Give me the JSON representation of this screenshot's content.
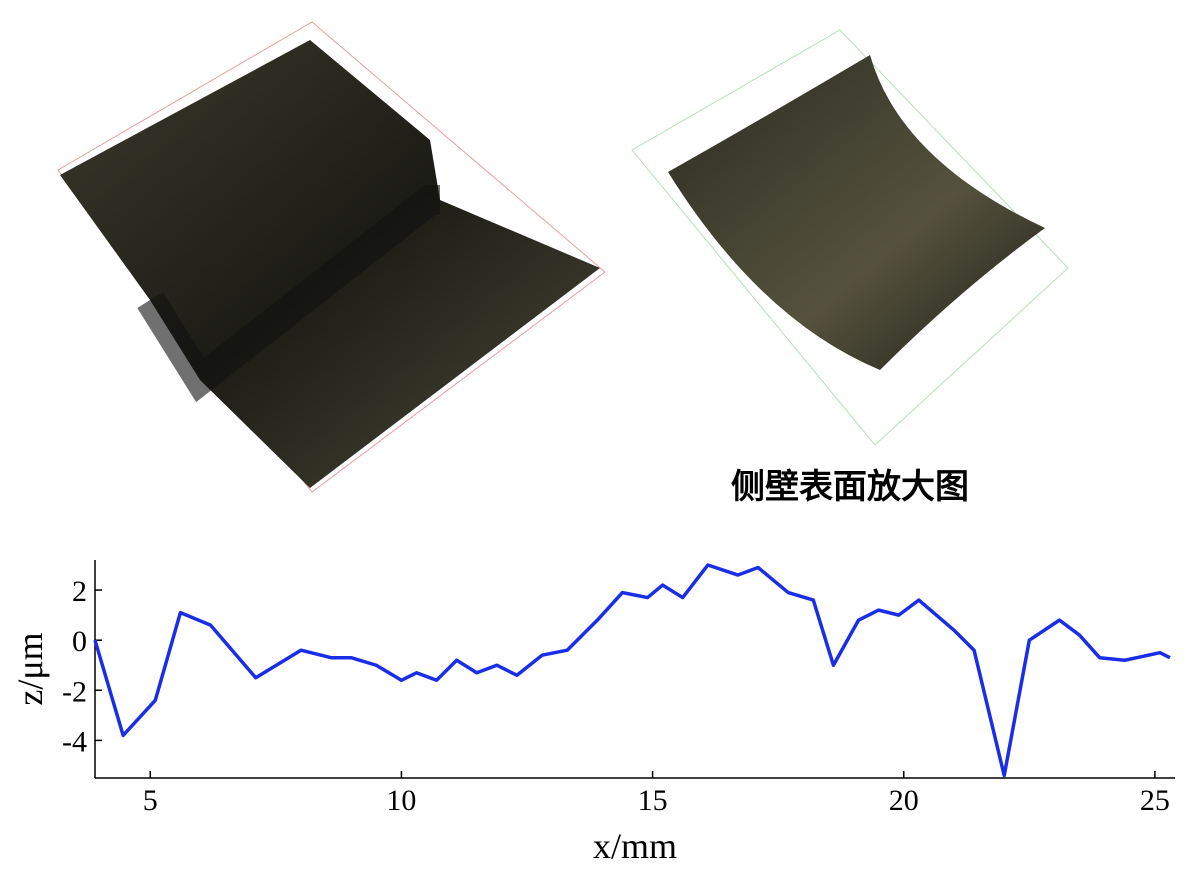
{
  "caption": "侧壁表面放大图",
  "chart_data": {
    "type": "line",
    "x_label": "x/mm",
    "y_label": "z/μm",
    "x": [
      3.9,
      4.46,
      5.1,
      5.6,
      6.2,
      7.1,
      8.0,
      8.6,
      9.0,
      9.5,
      10.0,
      10.3,
      10.7,
      11.1,
      11.5,
      11.9,
      12.3,
      12.8,
      13.3,
      13.9,
      14.4,
      14.9,
      15.2,
      15.6,
      16.1,
      16.7,
      17.1,
      17.7,
      18.2,
      18.6,
      19.1,
      19.5,
      19.9,
      20.3,
      21.0,
      21.4,
      22.0,
      22.5,
      23.1,
      23.5,
      23.9,
      24.4,
      25.1,
      25.3
    ],
    "series": [
      {
        "color": "#1a2ee8",
        "values": [
          0,
          -3.8,
          -2.4,
          1.1,
          0.6,
          -1.5,
          -0.4,
          -0.7,
          -0.7,
          -1.0,
          -1.6,
          -1.3,
          -1.6,
          -0.8,
          -1.3,
          -1.0,
          -1.4,
          -0.6,
          -0.4,
          0.8,
          1.9,
          1.7,
          2.2,
          1.7,
          3.0,
          2.6,
          2.9,
          1.9,
          1.6,
          -1.0,
          0.8,
          1.2,
          1.0,
          1.6,
          0.4,
          -0.4,
          -5.4,
          0,
          0.8,
          0.2,
          -0.7,
          -0.8,
          -0.5,
          -0.7
        ]
      }
    ],
    "xlim": [
      3.9,
      25.4
    ],
    "xticks": [
      5,
      10,
      15,
      20,
      25
    ],
    "ylim": [
      -5.5,
      3.2
    ],
    "yticks": [
      -4,
      -2,
      0,
      2
    ]
  }
}
